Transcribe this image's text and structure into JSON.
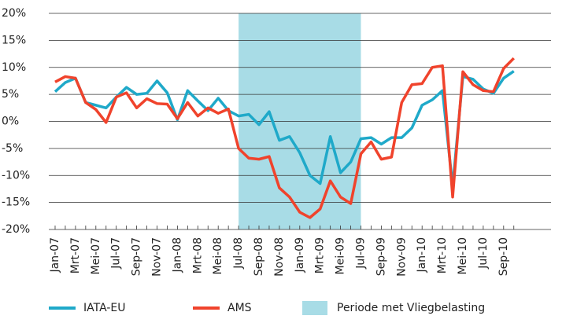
{
  "chart_data": {
    "type": "line",
    "categories": [
      "Jan-07",
      null,
      "Mrt-07",
      null,
      "Mei-07",
      null,
      "Jul-07",
      null,
      "Sep-07",
      null,
      "Nov-07",
      null,
      "Jan-08",
      null,
      "Mrt-08",
      null,
      "Mei-08",
      null,
      "Jul-08",
      null,
      "Sep-08",
      null,
      "Nov-08",
      null,
      "Jan-09",
      null,
      "Mrt-09",
      null,
      "Mei-09",
      null,
      "Jul-09",
      null,
      "Sep-09",
      null,
      "Nov-09",
      null,
      "Jan-10",
      null,
      "Mrt-10",
      null,
      "Mei-10",
      null,
      "Jul-10",
      null,
      "Sep-10",
      null
    ],
    "series": [
      {
        "name": "IATA-EU",
        "color": "#1fa9c9",
        "values": [
          5.5,
          7.2,
          8,
          3.5,
          3,
          2.5,
          4.5,
          6.3,
          5,
          5.2,
          7.5,
          5.3,
          0.3,
          5.7,
          3.8,
          2,
          4.3,
          2,
          1,
          1.3,
          -0.6,
          1.8,
          -3.5,
          -2.8,
          -5.8,
          -10,
          -11.5,
          -2.8,
          -9.5,
          -7.5,
          -3.2,
          -3,
          -4.2,
          -3,
          -3,
          -1.2,
          3,
          4,
          5.7,
          -12,
          8.3,
          7.8,
          6,
          5.2,
          8,
          9.3
        ]
      },
      {
        "name": "AMS",
        "color": "#f0432c",
        "values": [
          7.3,
          8.3,
          8,
          3.5,
          2.2,
          -0.2,
          4.5,
          5.3,
          2.5,
          4.2,
          3.3,
          3.2,
          0.5,
          3.5,
          1,
          2.5,
          1.5,
          2.3,
          -5,
          -6.8,
          -7,
          -6.5,
          -12.3,
          -14,
          -16.8,
          -17.8,
          -16.2,
          -11,
          -14,
          -15.2,
          -6,
          -3.8,
          -7,
          -6.6,
          3.5,
          6.8,
          7,
          10,
          10.3,
          -14,
          9.2,
          6.8,
          5.7,
          5.5,
          9.8,
          11.7
        ]
      }
    ],
    "shade": {
      "name": "Periode met Vliegbelasting",
      "color": "#a8dce6",
      "from": 18,
      "to": 30
    },
    "ylim": [
      -20,
      20
    ],
    "yticks": [
      {
        "value": -20,
        "label": "-20%"
      },
      {
        "value": -15,
        "label": "-15%"
      },
      {
        "value": -10,
        "label": "-10%"
      },
      {
        "value": -5,
        "label": "-5%"
      },
      {
        "value": 0,
        "label": "0%"
      },
      {
        "value": 5,
        "label": "5%"
      },
      {
        "value": 10,
        "label": "10%"
      },
      {
        "value": 15,
        "label": "15%"
      },
      {
        "value": 20,
        "label": "20%"
      }
    ],
    "grid": true
  }
}
